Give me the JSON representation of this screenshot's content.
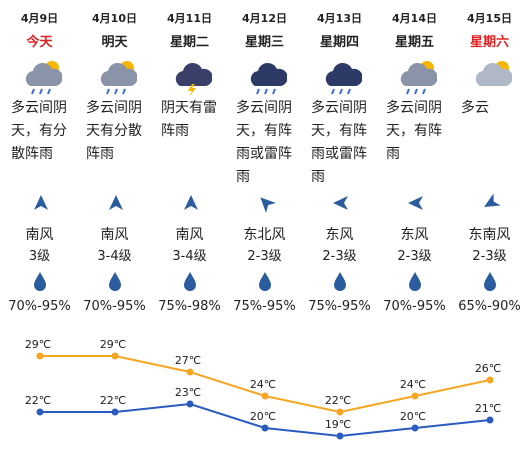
{
  "days": [
    {
      "date": "4月9日",
      "day": "今天",
      "color": "#e02020",
      "weather": "多云间阴天，有分散阵雨",
      "wind_direction": "南风",
      "wind_level": "3级",
      "humidity": "70%-95%"
    },
    {
      "date": "4月10日",
      "day": "明天",
      "color": "#222222",
      "weather": "多云间阴天有分散阵雨",
      "wind_direction": "南风",
      "wind_level": "3-4级",
      "humidity": "70%-95%"
    },
    {
      "date": "4月11日",
      "day": "星期二",
      "color": "#222222",
      "weather": "阴天有雷阵雨",
      "wind_direction": "南风",
      "wind_level": "3-4级",
      "humidity": "75%-98%"
    },
    {
      "date": "4月12日",
      "day": "星期三",
      "color": "#222222",
      "weather": "多云间阴天，有阵雨或雷阵雨",
      "wind_direction": "东北风",
      "wind_level": "2-3级",
      "humidity": "75%-95%"
    },
    {
      "date": "4月13日",
      "day": "星期四",
      "color": "#222222",
      "weather": "多云间阴天，有阵雨或雷阵雨",
      "wind_direction": "东风",
      "wind_level": "2-3级",
      "humidity": "75%-95%"
    },
    {
      "date": "4月14日",
      "day": "星期五",
      "color": "#222222",
      "weather": "多云间阴天，有阵雨",
      "wind_direction": "东风",
      "wind_level": "2-3级",
      "humidity": "70%-95%"
    },
    {
      "date": "4月15日",
      "day": "星期六",
      "color": "#e02020",
      "weather": "多云",
      "wind_direction": "东南风",
      "wind_level": "2-3级",
      "humidity": "65%-90%"
    }
  ],
  "temperature_chart": {
    "type": "line",
    "series": [
      {
        "color": "#f5a623",
        "values": [
          29,
          29,
          27,
          24,
          22,
          24,
          26
        ],
        "value_labels": [
          "29℃",
          "29℃",
          "27℃",
          "24℃",
          "22℃",
          "24℃",
          "26℃"
        ]
      },
      {
        "color": "#2a5cbf",
        "values": [
          22,
          22,
          23,
          20,
          19,
          20,
          21
        ],
        "value_labels": [
          "22℃",
          "22℃",
          "23℃",
          "20℃",
          "19℃",
          "20℃",
          "21℃"
        ]
      }
    ]
  }
}
